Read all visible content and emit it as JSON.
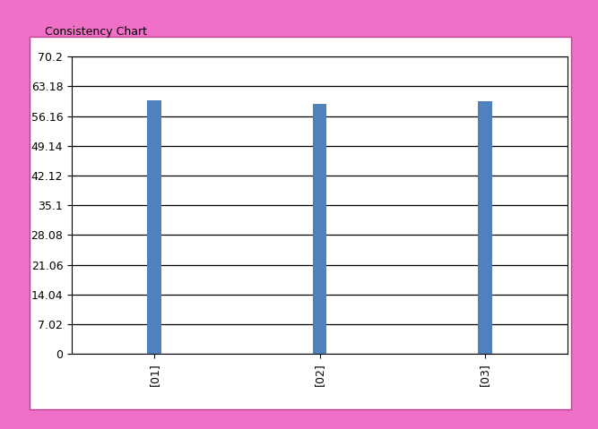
{
  "chart_data": {
    "type": "bar",
    "title": "Consistency Chart",
    "categories": [
      "[01]",
      "[02]",
      "[03]"
    ],
    "values": [
      59.8,
      59.0,
      59.6
    ],
    "color": "#4f81bd",
    "ylim": [
      0,
      70.2
    ],
    "yticks": [
      0,
      7.02,
      14.04,
      21.06,
      28.08,
      35.1,
      42.12,
      49.14,
      56.16,
      63.18,
      70.2
    ],
    "grid": true
  }
}
